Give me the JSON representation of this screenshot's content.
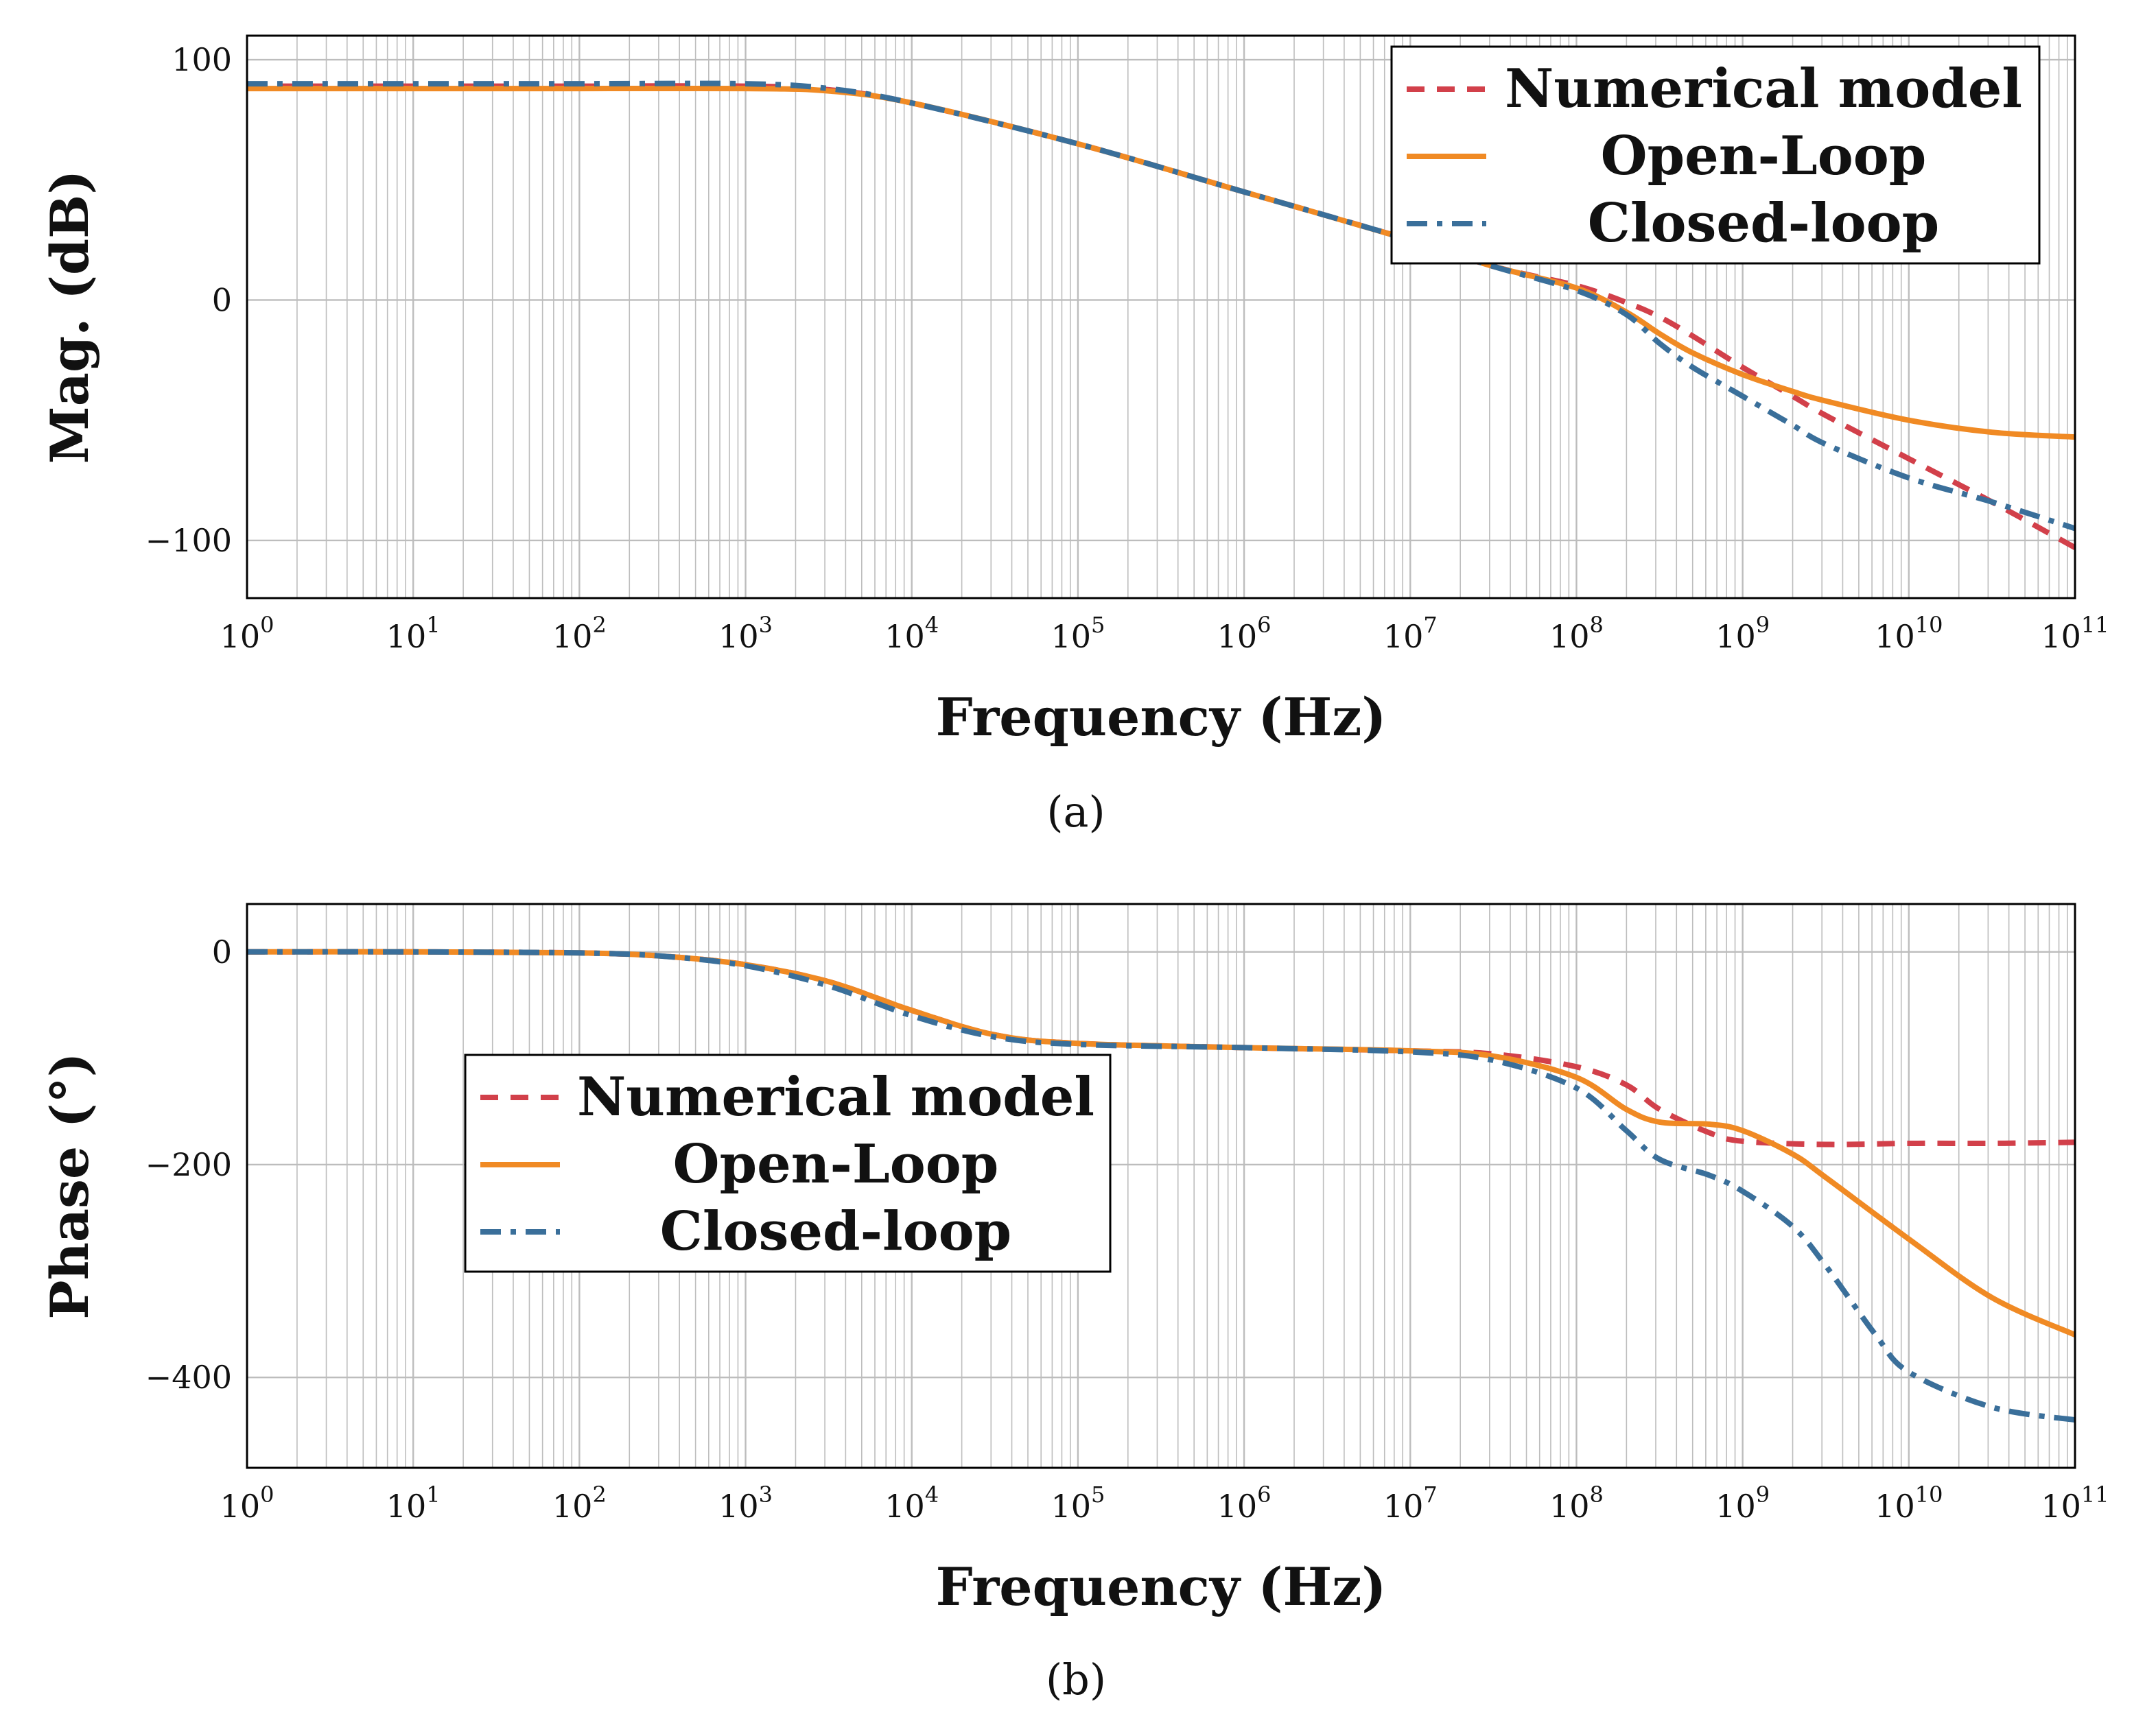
{
  "colors": {
    "numerical": "#d2404a",
    "open_loop": "#f08a24",
    "closed_loop": "#3a6f9a",
    "grid": "#bdbdbd",
    "axis": "#000000"
  },
  "chart_data": [
    {
      "type": "line",
      "panel": "a",
      "caption": "(a)",
      "xlabel": "Frequency (Hz)",
      "ylabel": "Mag. (dB)",
      "xscale": "log",
      "xlim_exp": [
        0,
        11
      ],
      "ylim": [
        -124,
        110
      ],
      "xtick_base": "10",
      "xtick_exponents": [
        "0",
        "1",
        "2",
        "3",
        "4",
        "5",
        "6",
        "7",
        "8",
        "9",
        "10",
        "11"
      ],
      "yticks": [
        100,
        0,
        -100
      ],
      "ytick_labels": [
        "100",
        "0",
        "−100"
      ],
      "grid": true,
      "legend": {
        "position": "top-right",
        "entries": [
          "Numerical model",
          "Open-Loop",
          "Closed-loop"
        ]
      },
      "series": [
        {
          "name": "Numerical model",
          "style": "dashed",
          "color_key": "numerical",
          "log10_x": [
            0,
            1,
            2,
            3,
            3.5,
            4,
            5,
            6,
            7,
            7.5,
            8,
            8.3,
            8.5,
            8.7,
            9,
            9.3,
            9.5,
            10,
            10.5,
            11
          ],
          "y": [
            89,
            89,
            89,
            89,
            87.5,
            82,
            65,
            45,
            25,
            14,
            6,
            -1,
            -7,
            -15,
            -28,
            -40,
            -48,
            -66,
            -84,
            -103
          ]
        },
        {
          "name": "Open-Loop",
          "style": "solid",
          "color_key": "open_loop",
          "log10_x": [
            0,
            1,
            2,
            3,
            3.5,
            4,
            5,
            6,
            7,
            7.5,
            8,
            8.3,
            8.5,
            8.7,
            9,
            9.3,
            9.5,
            10,
            10.5,
            11
          ],
          "y": [
            88,
            88,
            88,
            88,
            87,
            82,
            65,
            45,
            25,
            14,
            5,
            -5,
            -14,
            -22,
            -31,
            -38,
            -42,
            -50,
            -55,
            -57
          ]
        },
        {
          "name": "Closed-loop",
          "style": "dashdot",
          "color_key": "closed_loop",
          "log10_x": [
            0,
            1,
            2,
            3,
            3.5,
            4,
            5,
            6,
            7,
            7.5,
            8,
            8.3,
            8.5,
            8.7,
            9,
            9.3,
            9.5,
            10,
            10.5,
            11
          ],
          "y": [
            90,
            90,
            90,
            90,
            88,
            82,
            65,
            45,
            25,
            14,
            4,
            -6,
            -18,
            -28,
            -40,
            -52,
            -60,
            -74,
            -84,
            -95
          ]
        }
      ]
    },
    {
      "type": "line",
      "panel": "b",
      "caption": "(b)",
      "xlabel": "Frequency (Hz)",
      "ylabel": "Phase (°)",
      "xscale": "log",
      "xlim_exp": [
        0,
        11
      ],
      "ylim": [
        -485,
        45
      ],
      "xtick_base": "10",
      "xtick_exponents": [
        "0",
        "1",
        "2",
        "3",
        "4",
        "5",
        "6",
        "7",
        "8",
        "9",
        "10",
        "11"
      ],
      "yticks": [
        0,
        -200,
        -400
      ],
      "ytick_labels": [
        "0",
        "−200",
        "−400"
      ],
      "grid": true,
      "legend": {
        "position": "center-left",
        "entries": [
          "Numerical model",
          "Open-Loop",
          "Closed-loop"
        ]
      },
      "series": [
        {
          "name": "Numerical model",
          "style": "dashed",
          "color_key": "numerical",
          "log10_x": [
            0,
            1,
            2,
            2.5,
            3,
            3.5,
            4,
            4.5,
            5,
            6,
            7,
            7.5,
            8,
            8.3,
            8.5,
            8.8,
            9,
            9.5,
            10,
            10.5,
            11
          ],
          "y": [
            0,
            0,
            -1,
            -4,
            -12,
            -28,
            -55,
            -78,
            -86,
            -90,
            -93,
            -96,
            -108,
            -125,
            -148,
            -170,
            -178,
            -181,
            -180,
            -180,
            -179
          ]
        },
        {
          "name": "Open-Loop",
          "style": "solid",
          "color_key": "open_loop",
          "log10_x": [
            0,
            1,
            2,
            2.5,
            3,
            3.5,
            4,
            4.5,
            5,
            6,
            7,
            7.5,
            8,
            8.3,
            8.5,
            8.8,
            9,
            9.3,
            9.5,
            10,
            10.5,
            11
          ],
          "y": [
            0,
            0,
            -1,
            -4,
            -12,
            -28,
            -55,
            -78,
            -86,
            -90,
            -93,
            -98,
            -118,
            -148,
            -160,
            -162,
            -168,
            -190,
            -212,
            -270,
            -325,
            -360
          ]
        },
        {
          "name": "Closed-loop",
          "style": "dashdot",
          "color_key": "closed_loop",
          "log10_x": [
            0,
            1,
            2,
            2.5,
            3,
            3.5,
            4,
            4.5,
            5,
            6,
            7,
            7.5,
            8,
            8.3,
            8.5,
            8.8,
            9,
            9.3,
            9.5,
            9.8,
            10,
            10.5,
            11
          ],
          "y": [
            0,
            0,
            -1,
            -4,
            -13,
            -32,
            -60,
            -80,
            -87,
            -90,
            -94,
            -102,
            -128,
            -168,
            -195,
            -210,
            -225,
            -258,
            -295,
            -360,
            -395,
            -428,
            -440
          ]
        }
      ]
    }
  ]
}
